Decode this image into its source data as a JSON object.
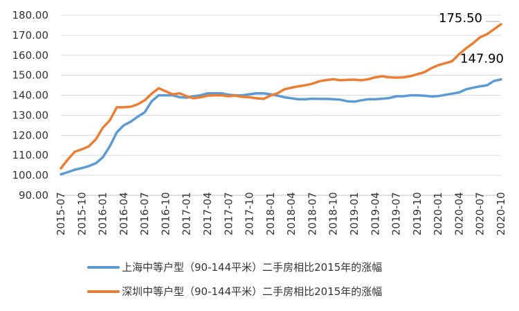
{
  "chart_data": {
    "type": "line",
    "title": "",
    "xlabel": "",
    "ylabel": "",
    "ylim": [
      90,
      180
    ],
    "y_ticks": [
      "90.00",
      "100.00",
      "110.00",
      "120.00",
      "130.00",
      "140.00",
      "150.00",
      "160.00",
      "170.00",
      "180.00"
    ],
    "y_tick_values": [
      90,
      100,
      110,
      120,
      130,
      140,
      150,
      160,
      170,
      180
    ],
    "grid": "horizontal",
    "legend_position": "bottom",
    "x": [
      "2015-07",
      "2015-08",
      "2015-09",
      "2015-10",
      "2015-11",
      "2015-12",
      "2016-01",
      "2016-02",
      "2016-03",
      "2016-04",
      "2016-05",
      "2016-06",
      "2016-07",
      "2016-08",
      "2016-09",
      "2016-10",
      "2016-11",
      "2016-12",
      "2017-01",
      "2017-02",
      "2017-03",
      "2017-04",
      "2017-05",
      "2017-06",
      "2017-07",
      "2017-08",
      "2017-09",
      "2017-10",
      "2017-11",
      "2017-12",
      "2018-01",
      "2018-02",
      "2018-03",
      "2018-04",
      "2018-05",
      "2018-06",
      "2018-07",
      "2018-08",
      "2018-09",
      "2018-10",
      "2018-11",
      "2018-12",
      "2019-01",
      "2019-02",
      "2019-03",
      "2019-04",
      "2019-05",
      "2019-06",
      "2019-07",
      "2019-08",
      "2019-09",
      "2019-10",
      "2019-11",
      "2019-12",
      "2020-01",
      "2020-02",
      "2020-03",
      "2020-04",
      "2020-05",
      "2020-06",
      "2020-07",
      "2020-08",
      "2020-09",
      "2020-10"
    ],
    "x_ticks": [
      "2015-07",
      "2015-10",
      "2016-01",
      "2016-04",
      "2016-07",
      "2016-10",
      "2017-01",
      "2017-04",
      "2017-07",
      "2017-10",
      "2018-01",
      "2018-04",
      "2018-07",
      "2018-10",
      "2019-01",
      "2019-04",
      "2019-07",
      "2019-10",
      "2020-01",
      "2020-04",
      "2020-07",
      "2020-10"
    ],
    "series": [
      {
        "name": "上海中等户型（90-144平米）二手房相比2015年的涨幅",
        "color": "#5b9bd5",
        "end_label": "147.90",
        "values": [
          100.5,
          101.6,
          102.8,
          103.6,
          104.6,
          106.0,
          109.0,
          114.5,
          121.5,
          125.0,
          126.8,
          129.3,
          131.5,
          137.0,
          140.0,
          140.0,
          140.0,
          139.0,
          138.8,
          139.5,
          140.0,
          141.0,
          141.0,
          141.0,
          140.3,
          140.0,
          140.0,
          140.5,
          141.0,
          141.0,
          140.5,
          139.8,
          139.0,
          138.5,
          138.0,
          138.0,
          138.3,
          138.2,
          138.2,
          138.0,
          137.8,
          137.0,
          136.8,
          137.5,
          138.0,
          138.0,
          138.3,
          138.6,
          139.5,
          139.5,
          140.0,
          140.0,
          139.8,
          139.4,
          139.6,
          140.2,
          140.8,
          141.4,
          143.0,
          143.8,
          144.5,
          145.0,
          147.2,
          147.9
        ]
      },
      {
        "name": "深圳中等户型（90-144平米）二手房相比2015年的涨幅",
        "color": "#ed7d31",
        "end_label": "175.50",
        "values": [
          103.5,
          108.0,
          111.8,
          113.0,
          114.5,
          118.0,
          123.8,
          127.5,
          134.0,
          134.0,
          134.3,
          135.5,
          137.5,
          140.8,
          143.5,
          142.0,
          140.5,
          141.0,
          139.5,
          138.5,
          139.0,
          139.8,
          140.0,
          140.0,
          139.5,
          139.8,
          139.2,
          139.0,
          138.5,
          138.2,
          139.8,
          141.0,
          143.0,
          143.8,
          144.5,
          145.0,
          145.8,
          147.0,
          147.6,
          148.0,
          147.5,
          147.7,
          147.8,
          147.5,
          148.0,
          149.0,
          149.5,
          149.0,
          148.8,
          149.0,
          149.5,
          150.5,
          151.5,
          153.5,
          155.0,
          156.0,
          157.0,
          160.5,
          163.5,
          166.0,
          169.0,
          170.5,
          173.0,
          175.5
        ]
      }
    ]
  }
}
